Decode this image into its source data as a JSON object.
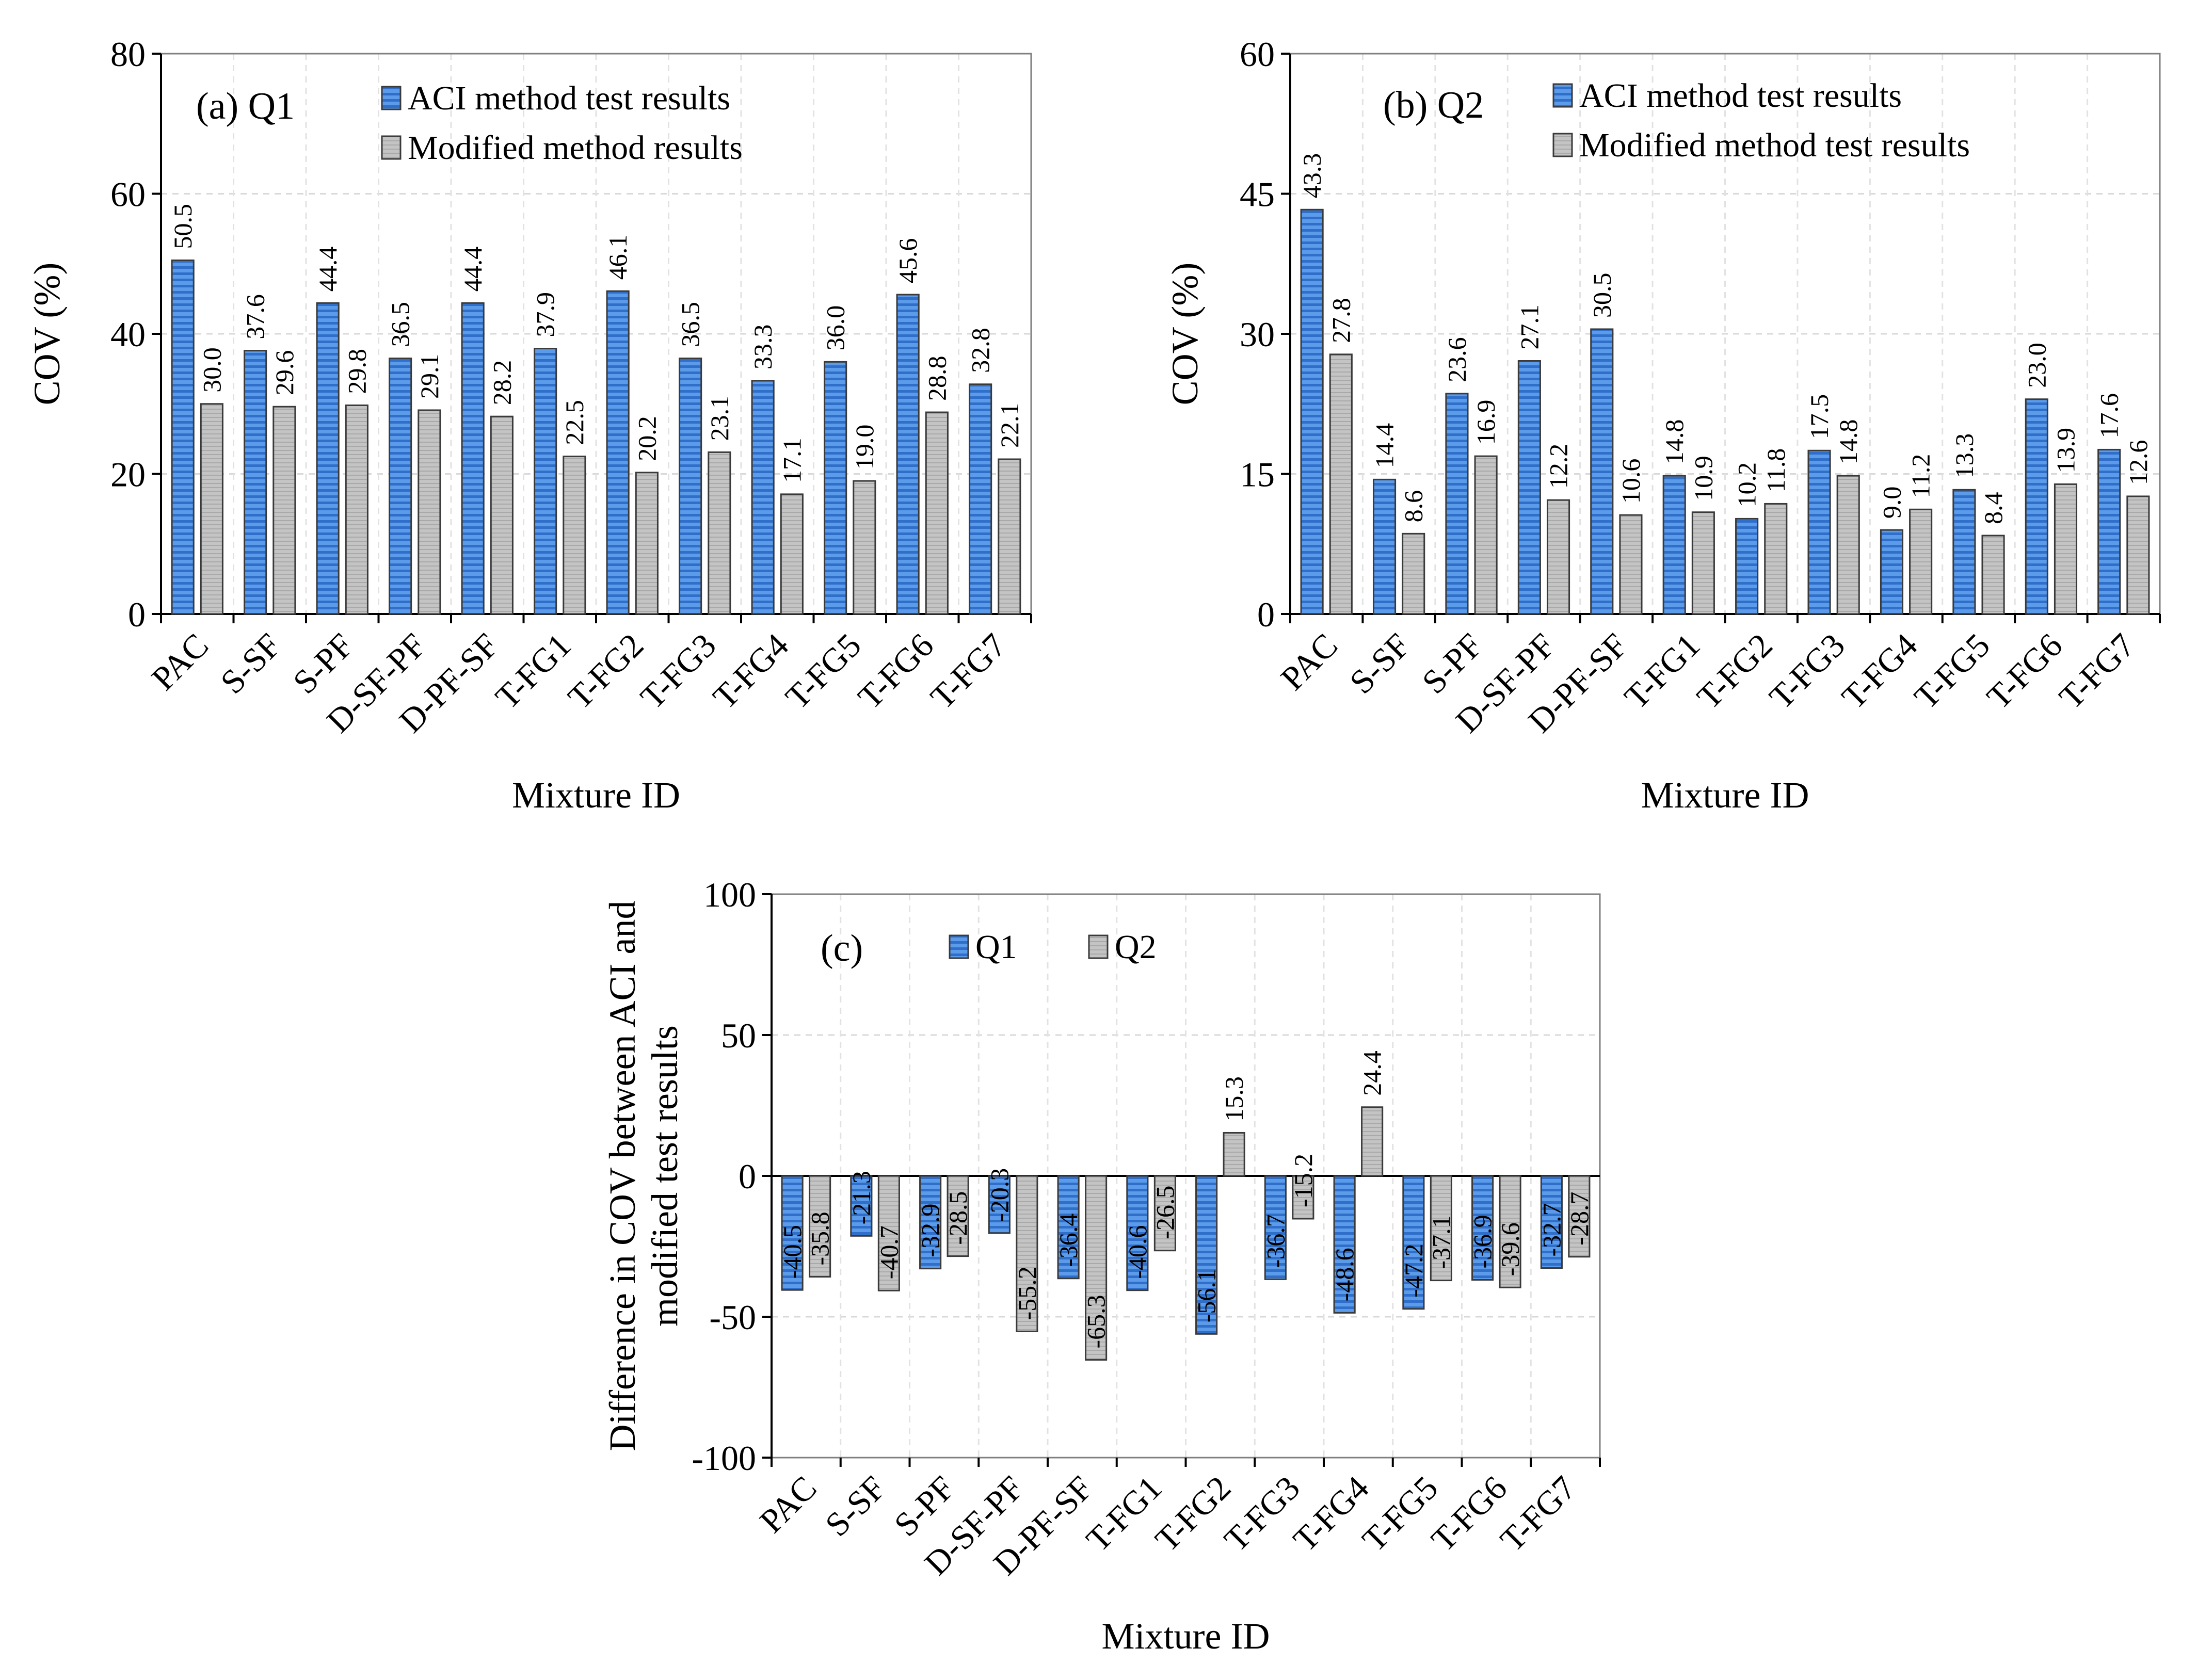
{
  "chart_data": [
    {
      "id": "a",
      "type": "bar",
      "title": "(a) Q1",
      "xlabel": "Mixture ID",
      "ylabel": "COV (%)",
      "ylim": [
        0,
        80
      ],
      "yticks": [
        0,
        20,
        40,
        60,
        80
      ],
      "grid": true,
      "legend_position": "top-center",
      "categories": [
        "PAC",
        "S-SF",
        "S-PF",
        "D-SF-PF",
        "D-PF-SF",
        "T-FG1",
        "T-FG2",
        "T-FG3",
        "T-FG4",
        "T-FG5",
        "T-FG6",
        "T-FG7"
      ],
      "series": [
        {
          "name": "ACI method test results",
          "color": "#4a8be0",
          "values": [
            50.5,
            37.6,
            44.4,
            36.5,
            44.4,
            37.9,
            46.1,
            36.5,
            33.3,
            36.0,
            45.6,
            32.8
          ],
          "labels": [
            "50.5",
            "37.6",
            "44.4",
            "36.5",
            "44.4",
            "37.9",
            "46.1",
            "36.5",
            "33.3",
            "36.0",
            "45.6",
            "32.8"
          ]
        },
        {
          "name": "Modified method results",
          "color": "#bdbdbd",
          "values": [
            30.0,
            29.6,
            29.8,
            29.1,
            28.2,
            22.5,
            20.2,
            23.1,
            17.1,
            19.0,
            28.8,
            22.1
          ],
          "labels": [
            "30.0",
            "29.6",
            "29.8",
            "29.1",
            "28.2",
            "22.5",
            "20.2",
            "23.1",
            "17.1",
            "19.0",
            "28.8",
            "22.1"
          ]
        }
      ]
    },
    {
      "id": "b",
      "type": "bar",
      "title": "(b) Q2",
      "xlabel": "Mixture ID",
      "ylabel": "COV (%)",
      "ylim": [
        0,
        60
      ],
      "yticks": [
        0,
        15,
        30,
        45,
        60
      ],
      "grid": true,
      "legend_position": "top-center",
      "categories": [
        "PAC",
        "S-SF",
        "S-PF",
        "D-SF-PF",
        "D-PF-SF",
        "T-FG1",
        "T-FG2",
        "T-FG3",
        "T-FG4",
        "T-FG5",
        "T-FG6",
        "T-FG7"
      ],
      "series": [
        {
          "name": "ACI method test results",
          "color": "#4a8be0",
          "values": [
            43.3,
            14.4,
            23.6,
            27.1,
            30.5,
            14.8,
            10.2,
            17.5,
            9.0,
            13.3,
            23.0,
            17.6
          ],
          "labels": [
            "43.3",
            "14.4",
            "23.6",
            "27.1",
            "30.5",
            "14.8",
            "10.2",
            "17.5",
            "9.0",
            "13.3",
            "23.0",
            "17.6"
          ]
        },
        {
          "name": "Modified method test results",
          "color": "#bdbdbd",
          "values": [
            27.8,
            8.6,
            16.9,
            12.2,
            10.6,
            10.9,
            11.8,
            14.8,
            11.2,
            8.4,
            13.9,
            12.6
          ],
          "labels": [
            "27.8",
            "8.6",
            "16.9",
            "12.2",
            "10.6",
            "10.9",
            "11.8",
            "14.8",
            "11.2",
            "8.4",
            "13.9",
            "12.6"
          ]
        }
      ]
    },
    {
      "id": "c",
      "type": "bar",
      "title": "(c)",
      "xlabel": "Mixture ID",
      "ylabel": [
        "Difference in COV between ACI and",
        "modified test results"
      ],
      "ylim": [
        -100,
        100
      ],
      "yticks": [
        -100,
        -50,
        0,
        50,
        100
      ],
      "grid": true,
      "legend_position": "top-center",
      "categories": [
        "PAC",
        "S-SF",
        "S-PF",
        "D-SF-PF",
        "D-PF-SF",
        "T-FG1",
        "T-FG2",
        "T-FG3",
        "T-FG4",
        "T-FG5",
        "T-FG6",
        "T-FG7"
      ],
      "series": [
        {
          "name": "Q1",
          "color": "#4a8be0",
          "values": [
            -40.5,
            -21.3,
            -32.9,
            -20.3,
            -36.4,
            -40.6,
            -56.1,
            -36.7,
            -48.6,
            -47.2,
            -36.9,
            -32.7
          ],
          "labels": [
            "-40.5",
            "-21.3",
            "-32.9",
            "-20.3",
            "-36.4",
            "-40.6",
            "-56.1",
            "-36.7",
            "-48.6",
            "-47.2",
            "-36.9",
            "-32.7"
          ]
        },
        {
          "name": "Q2",
          "color": "#bdbdbd",
          "values": [
            -35.8,
            -40.7,
            -28.5,
            -55.2,
            -65.3,
            -26.5,
            15.3,
            -15.2,
            24.4,
            -37.1,
            -39.6,
            -28.7
          ],
          "labels": [
            "-35.8",
            "-40.7",
            "-28.5",
            "-55.2",
            "-65.3",
            "-26.5",
            "15.3",
            "-15.2",
            "24.4",
            "-37.1",
            "-39.6",
            "-28.7"
          ]
        }
      ]
    }
  ]
}
